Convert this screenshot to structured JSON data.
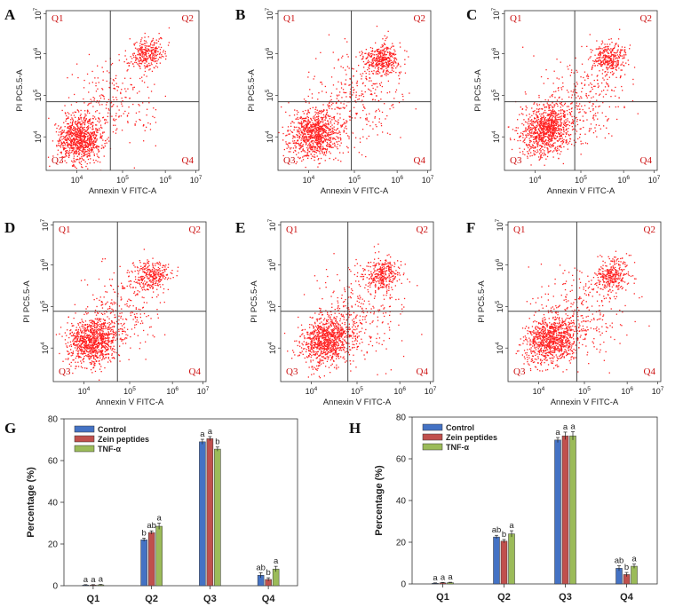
{
  "chart_data": [
    {
      "type": "scatter",
      "panel": "A",
      "xlabel": "Annexin V FITC-A",
      "ylabel": "PI PC5.5-A",
      "x_tick_exponents": [
        "4",
        "5",
        "6",
        "7"
      ],
      "y_tick_exponents": [
        "4",
        "5",
        "6",
        "7"
      ],
      "quadrants": [
        "Q1",
        "Q2",
        "Q3",
        "Q4"
      ]
    },
    {
      "type": "scatter",
      "panel": "B",
      "xlabel": "Annexin V FITC-A",
      "ylabel": "PI PC5.5-A",
      "x_tick_exponents": [
        "4",
        "5",
        "6",
        "7"
      ],
      "y_tick_exponents": [
        "4",
        "5",
        "6",
        "7"
      ],
      "quadrants": [
        "Q1",
        "Q2",
        "Q3",
        "Q4"
      ]
    },
    {
      "type": "scatter",
      "panel": "C",
      "xlabel": "Annexin V FITC-A",
      "ylabel": "PI PC5.5-A",
      "x_tick_exponents": [
        "4",
        "5",
        "6",
        "7"
      ],
      "y_tick_exponents": [
        "4",
        "5",
        "6",
        "7"
      ],
      "quadrants": [
        "Q1",
        "Q2",
        "Q3",
        "Q4"
      ]
    },
    {
      "type": "scatter",
      "panel": "D",
      "xlabel": "Annexin V FITC-A",
      "ylabel": "PI PC5.5-A",
      "x_tick_exponents": [
        "4",
        "5",
        "6",
        "7"
      ],
      "y_tick_exponents": [
        "4",
        "5",
        "6",
        "7"
      ],
      "quadrants": [
        "Q1",
        "Q2",
        "Q3",
        "Q4"
      ]
    },
    {
      "type": "scatter",
      "panel": "E",
      "xlabel": "Annexin V FITC-A",
      "ylabel": "PI PC5.5-A",
      "x_tick_exponents": [
        "4",
        "5",
        "6",
        "7"
      ],
      "y_tick_exponents": [
        "4",
        "5",
        "6",
        "7"
      ],
      "quadrants": [
        "Q1",
        "Q2",
        "Q3",
        "Q4"
      ]
    },
    {
      "type": "scatter",
      "panel": "F",
      "xlabel": "Annexin V FITC-A",
      "ylabel": "PI PC5.5-A",
      "x_tick_exponents": [
        "4",
        "5",
        "6",
        "7"
      ],
      "y_tick_exponents": [
        "4",
        "5",
        "6",
        "7"
      ],
      "quadrants": [
        "Q1",
        "Q2",
        "Q3",
        "Q4"
      ]
    },
    {
      "type": "bar",
      "panel": "G",
      "ylabel": "Percentage (%)",
      "ylim": [
        0,
        80
      ],
      "yticks": [
        "0",
        "20",
        "40",
        "60",
        "80"
      ],
      "categories": [
        "Q1",
        "Q2",
        "Q3",
        "Q4"
      ],
      "legend_position": "top-left",
      "series": [
        {
          "name": "Control",
          "color": "#4472c4",
          "values": [
            0.3,
            22,
            69,
            5
          ],
          "errors": [
            0.2,
            0.8,
            1.2,
            1.2
          ],
          "letters": [
            "a",
            "b",
            "a",
            "ab"
          ]
        },
        {
          "name": "Zein peptides",
          "color": "#c0504d",
          "values": [
            0.3,
            25.5,
            70.5,
            3
          ],
          "errors": [
            0.2,
            0.8,
            1.0,
            0.8
          ],
          "letters": [
            "a",
            "ab",
            "a",
            "b"
          ]
        },
        {
          "name": "TNF-α",
          "color": "#9bbb59",
          "values": [
            0.4,
            28.5,
            65.5,
            8
          ],
          "errors": [
            0.2,
            1.5,
            1.0,
            1.3
          ],
          "letters": [
            "a",
            "a",
            "b",
            "a"
          ]
        }
      ]
    },
    {
      "type": "bar",
      "panel": "H",
      "ylabel": "Percentage (%)",
      "ylim": [
        0,
        80
      ],
      "yticks": [
        "0",
        "20",
        "40",
        "60",
        "80"
      ],
      "categories": [
        "Q1",
        "Q2",
        "Q3",
        "Q4"
      ],
      "legend_position": "top-left",
      "series": [
        {
          "name": "Control",
          "color": "#4472c4",
          "values": [
            0.3,
            22.5,
            69,
            7.5
          ],
          "errors": [
            0.2,
            0.8,
            1.2,
            1.2
          ],
          "letters": [
            "a",
            "ab",
            "a",
            "ab"
          ]
        },
        {
          "name": "Zein peptides",
          "color": "#c0504d",
          "values": [
            0.5,
            20.5,
            71,
            4.5
          ],
          "errors": [
            0.2,
            0.8,
            1.8,
            1.0
          ],
          "letters": [
            "a",
            "b",
            "a",
            "b"
          ]
        },
        {
          "name": "TNF-α",
          "color": "#9bbb59",
          "values": [
            0.6,
            24,
            71,
            8.5
          ],
          "errors": [
            0.2,
            1.5,
            2.0,
            1.0
          ],
          "letters": [
            "a",
            "a",
            "a",
            "a"
          ]
        }
      ]
    }
  ],
  "figure": {
    "panel_letters": [
      "A",
      "B",
      "C",
      "D",
      "E",
      "F",
      "G",
      "H"
    ],
    "colors": {
      "dots": "#ff2020",
      "quadrant_labels": "#cc1111",
      "axes": "#333333"
    }
  }
}
